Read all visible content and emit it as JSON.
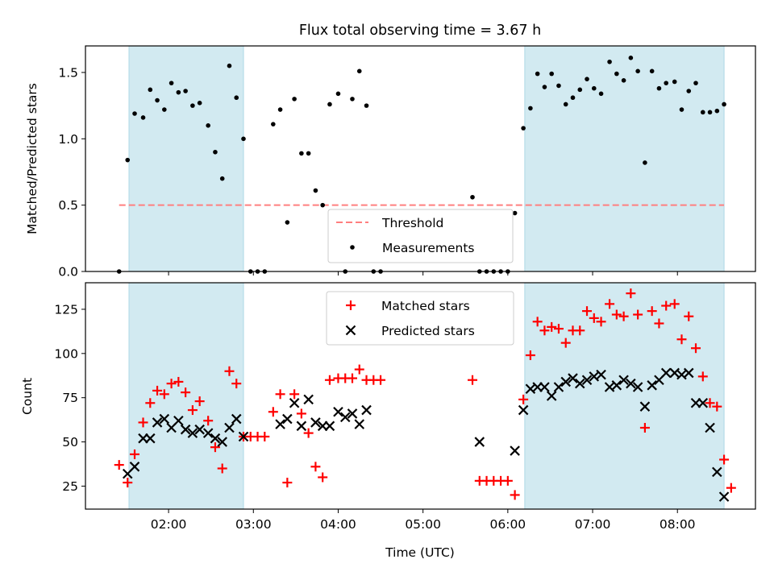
{
  "figure": {
    "title": "Flux total observing time = 3.67 h",
    "xlabel": "Time (UTC)"
  },
  "colors": {
    "shade": "#add8e6",
    "threshold": "#ff7f7f",
    "measurement": "#000000",
    "matched": "#ff0000",
    "predicted": "#000000"
  },
  "chart_data": [
    {
      "type": "scatter",
      "panel": "top",
      "ylabel": "Matched/Predicted stars",
      "xlim_hours": [
        1.02,
        8.92
      ],
      "ylim": [
        0,
        1.7
      ],
      "yticks": [
        "0.0",
        "0.5",
        "1.0",
        "1.5"
      ],
      "ytick_values": [
        0,
        0.5,
        1.0,
        1.5
      ],
      "shaded_intervals": [
        [
          "01:32",
          "02:53"
        ],
        [
          "06:12",
          "08:33"
        ]
      ],
      "threshold": {
        "name": "Threshold",
        "value": 0.5,
        "x_range": [
          "01:25",
          "08:33"
        ]
      },
      "legend": {
        "placement": "lower-center",
        "entries": [
          "Threshold",
          "Measurements"
        ]
      },
      "series": [
        {
          "name": "Measurements",
          "points": [
            [
              "01:25",
              0.0
            ],
            [
              "01:31",
              0.84
            ],
            [
              "01:36",
              1.19
            ],
            [
              "01:42",
              1.16
            ],
            [
              "01:47",
              1.37
            ],
            [
              "01:52",
              1.29
            ],
            [
              "01:57",
              1.22
            ],
            [
              "02:02",
              1.42
            ],
            [
              "02:07",
              1.35
            ],
            [
              "02:12",
              1.36
            ],
            [
              "02:17",
              1.25
            ],
            [
              "02:22",
              1.27
            ],
            [
              "02:28",
              1.1
            ],
            [
              "02:33",
              0.9
            ],
            [
              "02:38",
              0.7
            ],
            [
              "02:43",
              1.55
            ],
            [
              "02:48",
              1.31
            ],
            [
              "02:53",
              1.0
            ],
            [
              "02:58",
              0.0
            ],
            [
              "03:03",
              0.0
            ],
            [
              "03:08",
              0.0
            ],
            [
              "03:14",
              1.11
            ],
            [
              "03:19",
              1.22
            ],
            [
              "03:24",
              0.37
            ],
            [
              "03:29",
              1.3
            ],
            [
              "03:34",
              0.89
            ],
            [
              "03:39",
              0.89
            ],
            [
              "03:44",
              0.61
            ],
            [
              "03:49",
              0.5
            ],
            [
              "03:54",
              1.26
            ],
            [
              "04:00",
              1.34
            ],
            [
              "04:05",
              0.0
            ],
            [
              "04:10",
              1.3
            ],
            [
              "04:15",
              1.51
            ],
            [
              "04:20",
              1.25
            ],
            [
              "04:25",
              0.0
            ],
            [
              "04:30",
              0.0
            ],
            [
              "05:35",
              0.56
            ],
            [
              "05:40",
              0.0
            ],
            [
              "05:45",
              0.0
            ],
            [
              "05:50",
              0.0
            ],
            [
              "05:55",
              0.0
            ],
            [
              "06:00",
              0.0
            ],
            [
              "06:05",
              0.44
            ],
            [
              "06:11",
              1.08
            ],
            [
              "06:16",
              1.23
            ],
            [
              "06:21",
              1.49
            ],
            [
              "06:26",
              1.39
            ],
            [
              "06:31",
              1.49
            ],
            [
              "06:36",
              1.4
            ],
            [
              "06:41",
              1.26
            ],
            [
              "06:46",
              1.31
            ],
            [
              "06:51",
              1.37
            ],
            [
              "06:56",
              1.45
            ],
            [
              "07:01",
              1.38
            ],
            [
              "07:06",
              1.34
            ],
            [
              "07:12",
              1.58
            ],
            [
              "07:17",
              1.49
            ],
            [
              "07:22",
              1.44
            ],
            [
              "07:27",
              1.61
            ],
            [
              "07:32",
              1.51
            ],
            [
              "07:37",
              0.82
            ],
            [
              "07:42",
              1.51
            ],
            [
              "07:47",
              1.38
            ],
            [
              "07:52",
              1.42
            ],
            [
              "07:58",
              1.43
            ],
            [
              "08:03",
              1.22
            ],
            [
              "08:08",
              1.36
            ],
            [
              "08:13",
              1.42
            ],
            [
              "08:18",
              1.2
            ],
            [
              "08:23",
              1.2
            ],
            [
              "08:28",
              1.21
            ],
            [
              "08:33",
              1.26
            ]
          ]
        }
      ]
    },
    {
      "type": "scatter",
      "panel": "bottom",
      "xlabel": "Time (UTC)",
      "ylabel": "Count",
      "xlim_hours": [
        1.02,
        8.92
      ],
      "ylim": [
        12,
        140
      ],
      "yticks": [
        "25",
        "50",
        "75",
        "100",
        "125"
      ],
      "ytick_values": [
        25,
        50,
        75,
        100,
        125
      ],
      "xticks": [
        "02:00",
        "03:00",
        "04:00",
        "05:00",
        "06:00",
        "07:00",
        "08:00"
      ],
      "shaded_intervals": [
        [
          "01:32",
          "02:53"
        ],
        [
          "06:12",
          "08:33"
        ]
      ],
      "legend": {
        "placement": "top-center",
        "entries": [
          "Matched stars",
          "Predicted stars"
        ]
      },
      "series": [
        {
          "name": "Matched stars",
          "points": [
            [
              "01:25",
              37
            ],
            [
              "01:31",
              27
            ],
            [
              "01:36",
              43
            ],
            [
              "01:42",
              61
            ],
            [
              "01:47",
              72
            ],
            [
              "01:52",
              79
            ],
            [
              "01:57",
              77
            ],
            [
              "02:02",
              83
            ],
            [
              "02:07",
              84
            ],
            [
              "02:12",
              78
            ],
            [
              "02:17",
              68
            ],
            [
              "02:22",
              73
            ],
            [
              "02:28",
              62
            ],
            [
              "02:33",
              47
            ],
            [
              "02:38",
              35
            ],
            [
              "02:43",
              90
            ],
            [
              "02:48",
              83
            ],
            [
              "02:53",
              53
            ],
            [
              "02:58",
              53
            ],
            [
              "03:03",
              53
            ],
            [
              "03:08",
              53
            ],
            [
              "03:14",
              67
            ],
            [
              "03:19",
              77
            ],
            [
              "03:24",
              27
            ],
            [
              "03:29",
              77
            ],
            [
              "03:34",
              66
            ],
            [
              "03:39",
              55
            ],
            [
              "03:44",
              36
            ],
            [
              "03:49",
              30
            ],
            [
              "03:54",
              85
            ],
            [
              "04:00",
              86
            ],
            [
              "04:05",
              86
            ],
            [
              "04:10",
              86
            ],
            [
              "04:15",
              91
            ],
            [
              "04:20",
              85
            ],
            [
              "04:25",
              85
            ],
            [
              "04:30",
              85
            ],
            [
              "05:35",
              85
            ],
            [
              "05:40",
              28
            ],
            [
              "05:45",
              28
            ],
            [
              "05:50",
              28
            ],
            [
              "05:55",
              28
            ],
            [
              "06:00",
              28
            ],
            [
              "06:05",
              20
            ],
            [
              "06:11",
              74
            ],
            [
              "06:16",
              99
            ],
            [
              "06:21",
              118
            ],
            [
              "06:26",
              113
            ],
            [
              "06:31",
              115
            ],
            [
              "06:36",
              114
            ],
            [
              "06:41",
              106
            ],
            [
              "06:46",
              113
            ],
            [
              "06:51",
              113
            ],
            [
              "06:56",
              124
            ],
            [
              "07:01",
              120
            ],
            [
              "07:06",
              118
            ],
            [
              "07:12",
              128
            ],
            [
              "07:17",
              122
            ],
            [
              "07:22",
              121
            ],
            [
              "07:27",
              134
            ],
            [
              "07:32",
              122
            ],
            [
              "07:37",
              58
            ],
            [
              "07:42",
              124
            ],
            [
              "07:47",
              117
            ],
            [
              "07:52",
              127
            ],
            [
              "07:58",
              128
            ],
            [
              "08:03",
              108
            ],
            [
              "08:08",
              121
            ],
            [
              "08:13",
              103
            ],
            [
              "08:18",
              87
            ],
            [
              "08:23",
              72
            ],
            [
              "08:28",
              70
            ],
            [
              "08:33",
              40
            ],
            [
              "08:38",
              24
            ]
          ]
        },
        {
          "name": "Predicted stars",
          "points": [
            [
              "01:31",
              32
            ],
            [
              "01:36",
              36
            ],
            [
              "01:42",
              52
            ],
            [
              "01:47",
              52
            ],
            [
              "01:52",
              61
            ],
            [
              "01:57",
              63
            ],
            [
              "02:02",
              58
            ],
            [
              "02:07",
              62
            ],
            [
              "02:12",
              57
            ],
            [
              "02:17",
              55
            ],
            [
              "02:22",
              57
            ],
            [
              "02:28",
              55
            ],
            [
              "02:33",
              52
            ],
            [
              "02:38",
              50
            ],
            [
              "02:43",
              58
            ],
            [
              "02:48",
              63
            ],
            [
              "02:53",
              53
            ],
            [
              "03:19",
              60
            ],
            [
              "03:24",
              63
            ],
            [
              "03:29",
              72
            ],
            [
              "03:34",
              59
            ],
            [
              "03:39",
              74
            ],
            [
              "03:44",
              61
            ],
            [
              "03:49",
              59
            ],
            [
              "03:54",
              59
            ],
            [
              "04:00",
              67
            ],
            [
              "04:05",
              64
            ],
            [
              "04:10",
              66
            ],
            [
              "04:15",
              60
            ],
            [
              "04:20",
              68
            ],
            [
              "05:40",
              50
            ],
            [
              "06:05",
              45
            ],
            [
              "06:11",
              68
            ],
            [
              "06:16",
              80
            ],
            [
              "06:21",
              81
            ],
            [
              "06:26",
              81
            ],
            [
              "06:31",
              76
            ],
            [
              "06:36",
              81
            ],
            [
              "06:41",
              84
            ],
            [
              "06:46",
              86
            ],
            [
              "06:51",
              83
            ],
            [
              "06:56",
              85
            ],
            [
              "07:01",
              87
            ],
            [
              "07:06",
              88
            ],
            [
              "07:12",
              81
            ],
            [
              "07:17",
              82
            ],
            [
              "07:22",
              85
            ],
            [
              "07:27",
              83
            ],
            [
              "07:32",
              81
            ],
            [
              "07:37",
              70
            ],
            [
              "07:42",
              82
            ],
            [
              "07:47",
              85
            ],
            [
              "07:52",
              89
            ],
            [
              "07:58",
              89
            ],
            [
              "08:03",
              88
            ],
            [
              "08:08",
              89
            ],
            [
              "08:13",
              72
            ],
            [
              "08:18",
              72
            ],
            [
              "08:23",
              58
            ],
            [
              "08:28",
              33
            ],
            [
              "08:33",
              19
            ]
          ]
        }
      ]
    }
  ]
}
